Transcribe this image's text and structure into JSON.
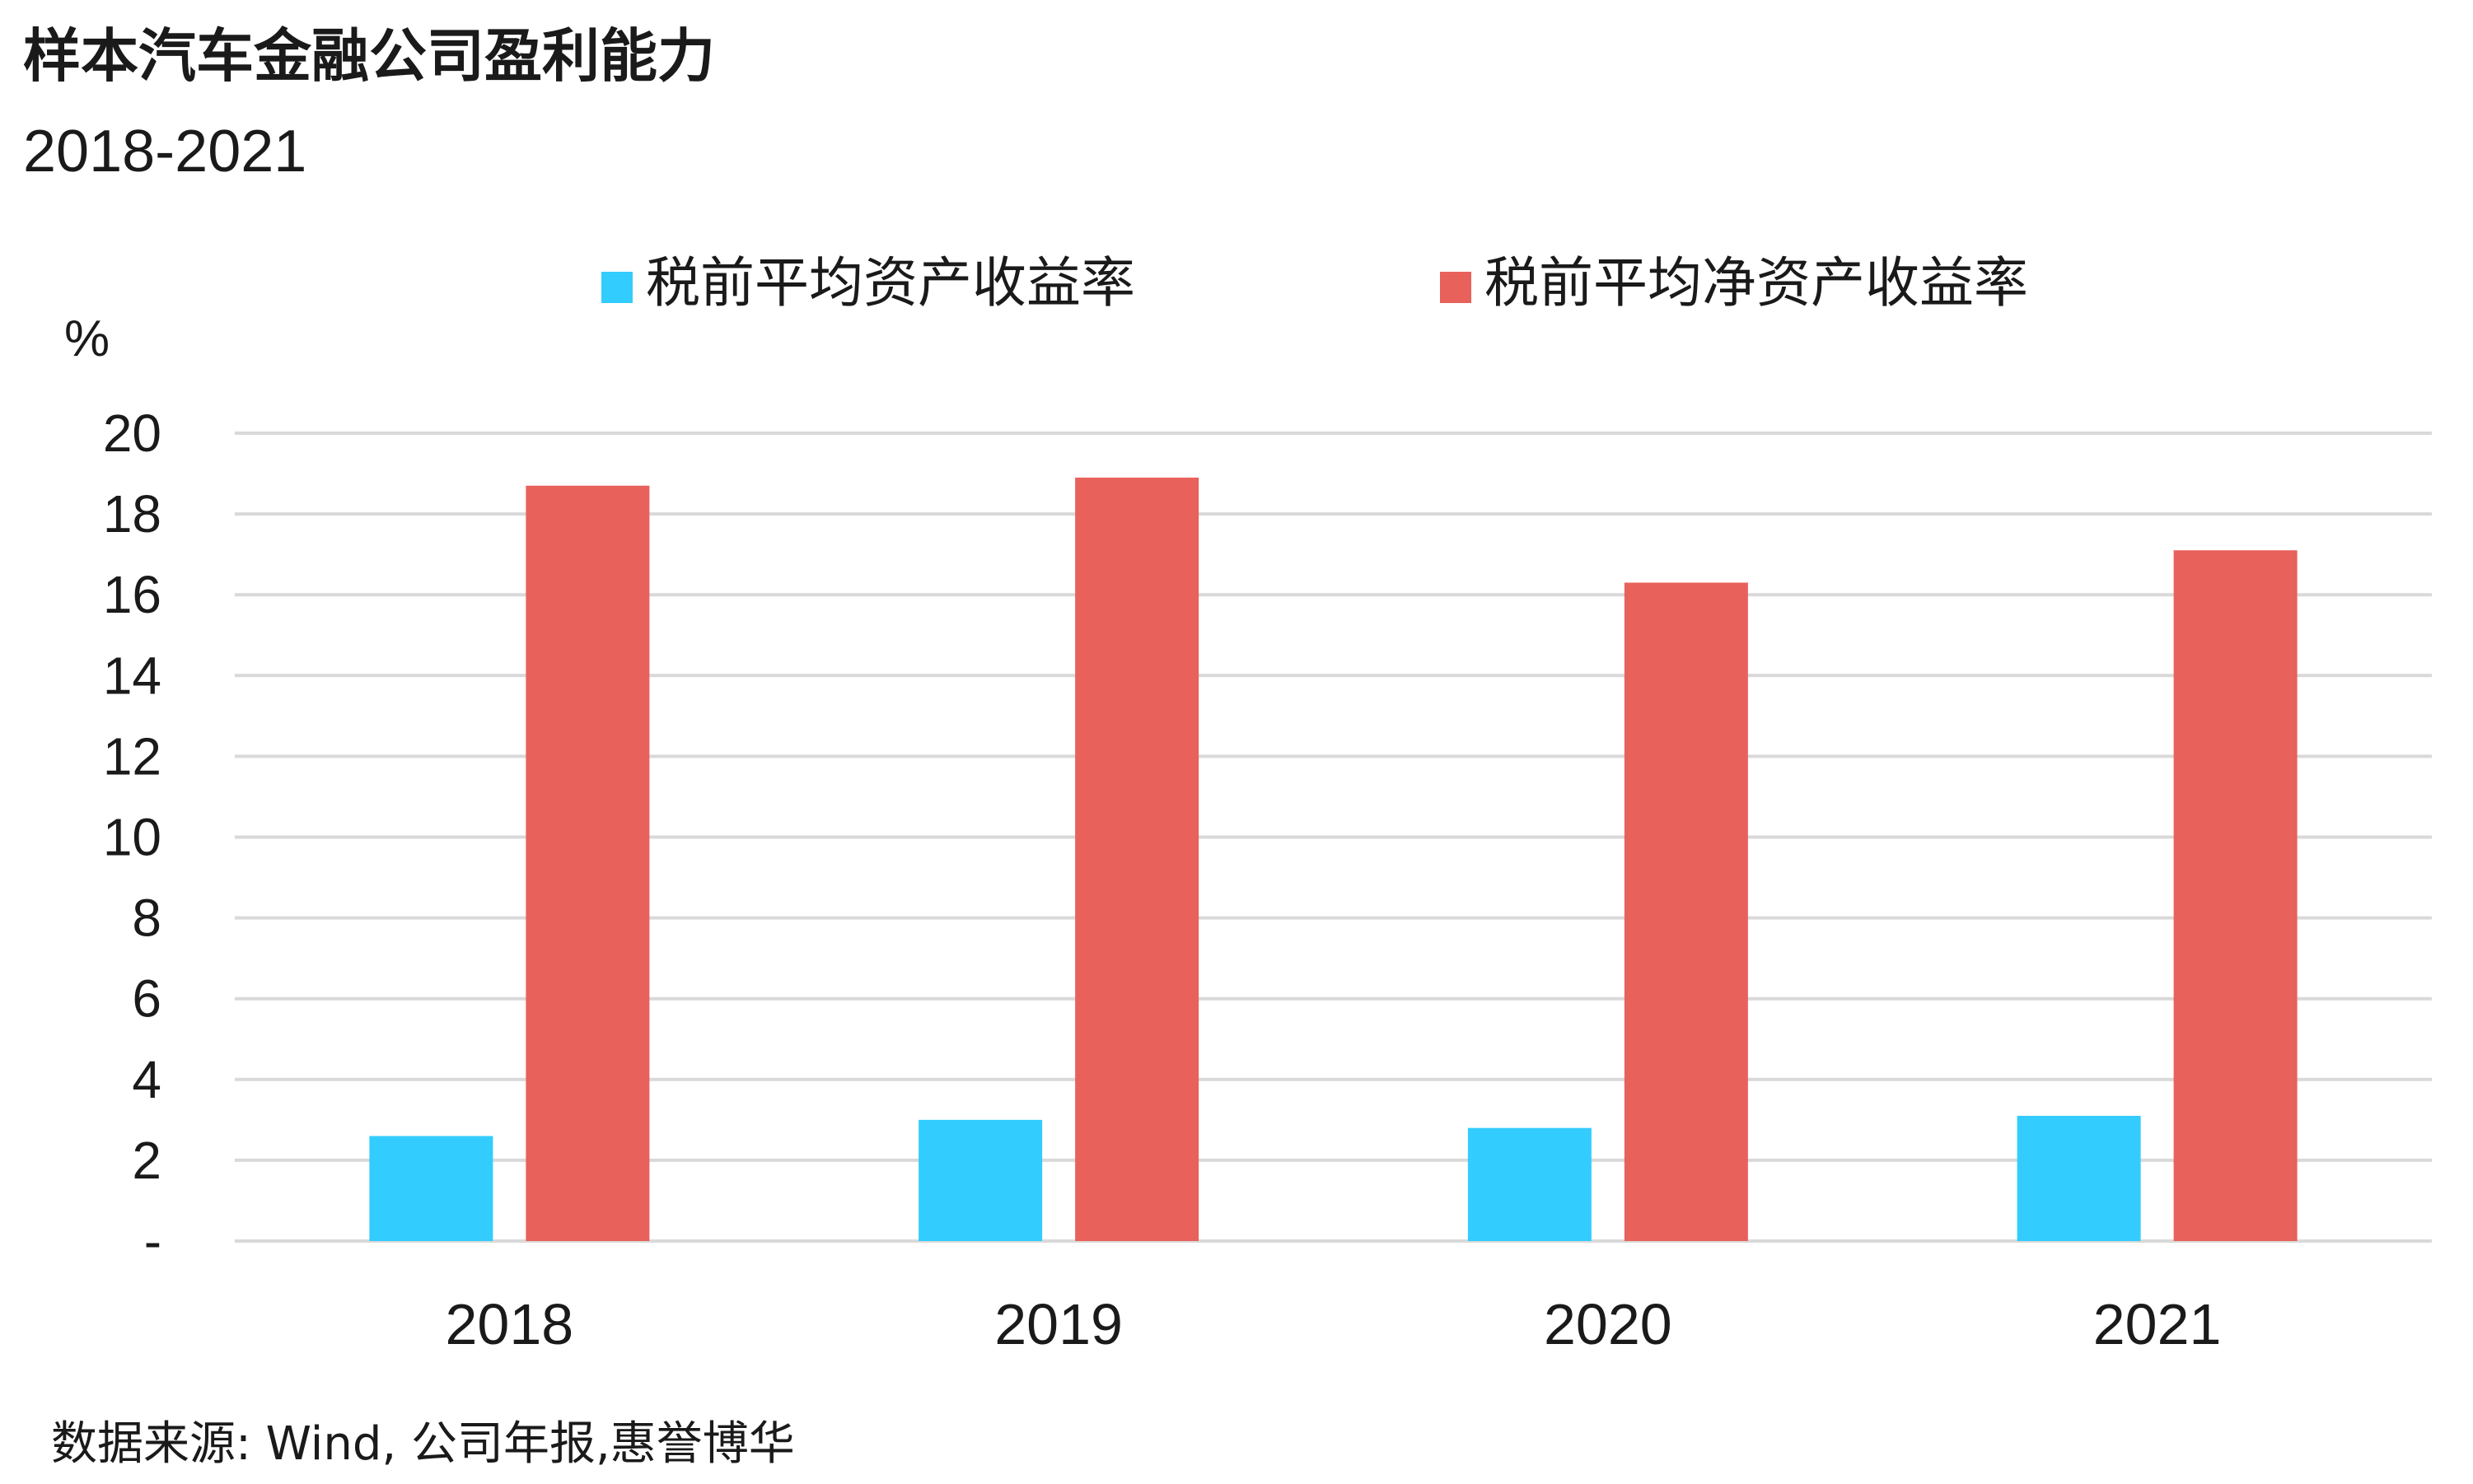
{
  "chart_data": {
    "type": "bar",
    "title": "样本汽车金融公司盈利能力",
    "subtitle": "2018-2021",
    "ylabel": "%",
    "xlabel": "",
    "categories": [
      "2018",
      "2019",
      "2020",
      "2021"
    ],
    "series": [
      {
        "name": "税前平均资产收益率",
        "values": [
          2.6,
          3.0,
          2.8,
          3.1
        ],
        "color": "#33CCFF"
      },
      {
        "name": "税前平均净资产收益率",
        "values": [
          18.7,
          18.9,
          16.3,
          17.1
        ],
        "color": "#E8615B"
      }
    ],
    "ylim": [
      0,
      20
    ],
    "yticks": [
      0,
      2,
      4,
      6,
      8,
      10,
      12,
      14,
      16,
      18,
      20
    ],
    "ytick_labels": [
      "-",
      "2",
      "4",
      "6",
      "8",
      "10",
      "12",
      "14",
      "16",
      "18",
      "20"
    ],
    "grid": true,
    "legend_position": "top"
  },
  "source": "数据来源: Wind, 公司年报,惠誉博华"
}
